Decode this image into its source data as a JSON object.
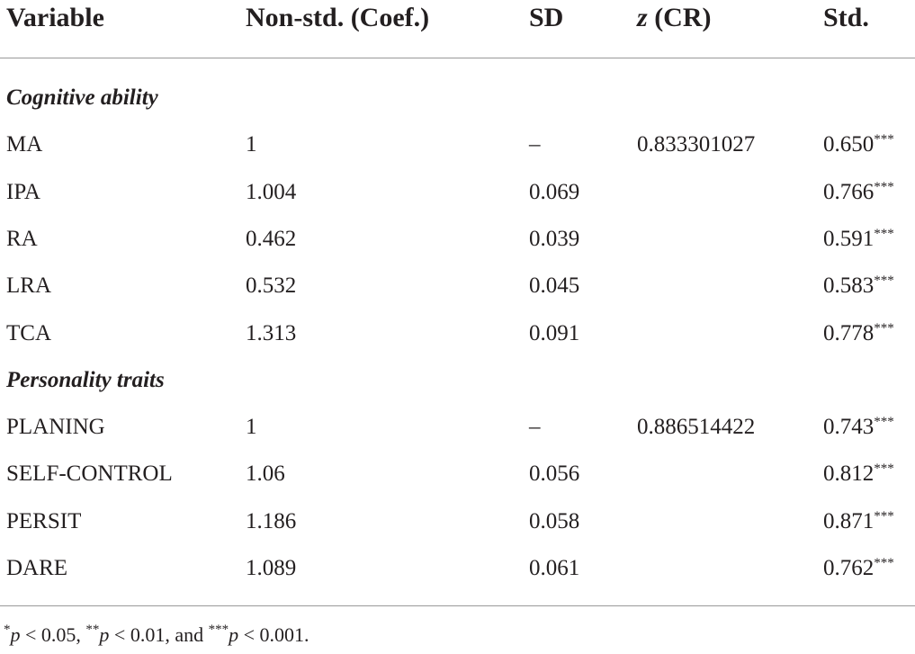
{
  "table": {
    "header": [
      [
        "Variable"
      ],
      [
        "Non-std. (Coef.)"
      ],
      [
        "SD"
      ],
      [
        "z",
        " (CR)"
      ],
      [
        "Std."
      ]
    ],
    "sections": [
      {
        "title": "Cognitive ability",
        "rows": [
          [
            "MA",
            "1",
            "–",
            "0.833301027",
            {
              "value": "0.650",
              "stars": "***"
            }
          ],
          [
            "IPA",
            "1.004",
            "0.069",
            null,
            {
              "value": "0.766",
              "stars": "***"
            }
          ],
          [
            "RA",
            "0.462",
            "0.039",
            null,
            {
              "value": "0.591",
              "stars": "***"
            }
          ],
          [
            "LRA",
            "0.532",
            "0.045",
            null,
            {
              "value": "0.583",
              "stars": "***"
            }
          ],
          [
            "TCA",
            "1.313",
            "0.091",
            null,
            {
              "value": "0.778",
              "stars": "***"
            }
          ]
        ]
      },
      {
        "title": "Personality traits",
        "rows": [
          [
            "PLANING",
            "1",
            "–",
            "0.886514422",
            {
              "value": "0.743",
              "stars": "***"
            }
          ],
          [
            "SELF-CONTROL",
            "1.06",
            "0.056",
            null,
            {
              "value": "0.812",
              "stars": "***"
            }
          ],
          [
            "PERSIT",
            "1.186",
            "0.058",
            null,
            {
              "value": "0.871",
              "stars": "***"
            }
          ],
          [
            "DARE",
            "1.089",
            "0.061",
            null,
            {
              "value": "0.762",
              "stars": "***"
            }
          ]
        ]
      }
    ],
    "footnote": [
      [
        "*",
        "p",
        " < 0.05,"
      ],
      [
        "**",
        "p",
        " < 0.01, and"
      ],
      [
        "***",
        "p",
        " < 0.001."
      ]
    ]
  }
}
